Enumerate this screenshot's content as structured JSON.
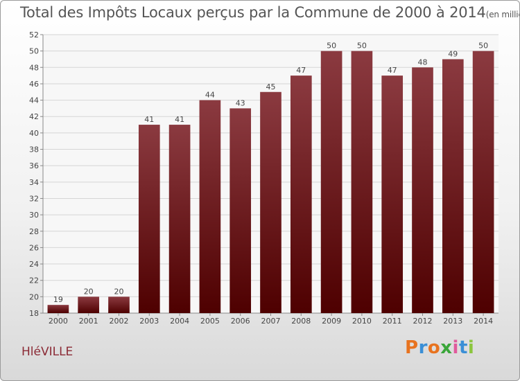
{
  "header": {
    "title": "Total des Impôts Locaux perçus par la Commune de 2000 à 2014",
    "unit": "(en milliers d'€)"
  },
  "commune": "HléVILLE",
  "logo": {
    "letters": [
      "P",
      "r",
      "o",
      "x",
      "i",
      "t",
      "i"
    ],
    "colors": [
      "#e8731f",
      "#3a8fd6",
      "#e8731f",
      "#3aa63a",
      "#e05a9c",
      "#3a8fd6",
      "#8cc63f"
    ]
  },
  "colors": {
    "bar_top": "#8b3a40",
    "bar_bottom": "#4e0000",
    "label": "#444444"
  },
  "chart_data": {
    "type": "bar",
    "title": "Total des Impôts Locaux perçus par la Commune de 2000 à 2014",
    "xlabel": "",
    "ylabel": "en milliers d'€",
    "ylim": [
      18,
      52
    ],
    "yticks": [
      18,
      20,
      22,
      24,
      26,
      28,
      30,
      32,
      34,
      36,
      38,
      40,
      42,
      44,
      46,
      48,
      50,
      52
    ],
    "grid": true,
    "categories": [
      "2000",
      "2001",
      "2002",
      "2003",
      "2004",
      "2005",
      "2006",
      "2007",
      "2008",
      "2009",
      "2010",
      "2011",
      "2012",
      "2013",
      "2014"
    ],
    "values": [
      19,
      20,
      20,
      41,
      41,
      44,
      43,
      45,
      47,
      50,
      50,
      47,
      48,
      49,
      50
    ]
  }
}
